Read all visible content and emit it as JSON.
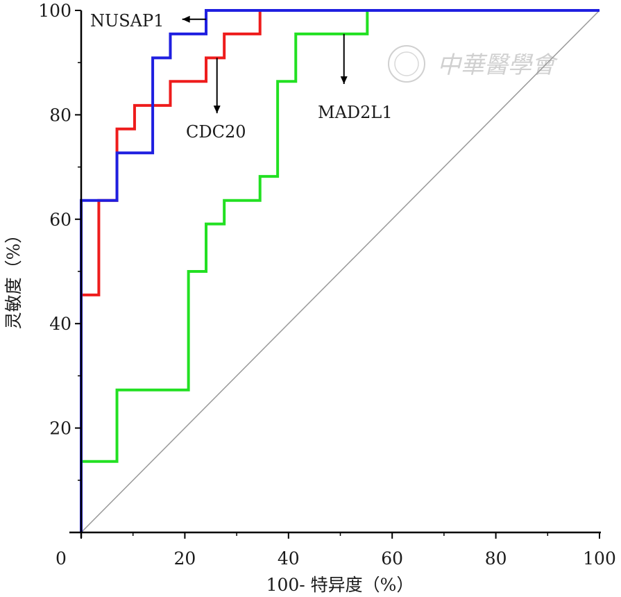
{
  "chart_data": {
    "type": "line",
    "title": "",
    "xlabel": "100- 特异度（%）",
    "ylabel": "灵敏度（%）",
    "xlim": [
      0,
      100
    ],
    "ylim": [
      0,
      100
    ],
    "x_ticks": [
      0,
      20,
      40,
      60,
      80,
      100
    ],
    "y_ticks": [
      20,
      40,
      60,
      80,
      100
    ],
    "x_tick_labels": [
      "0",
      "20",
      "40",
      "60",
      "80",
      "100"
    ],
    "y_tick_labels": [
      "20",
      "40",
      "60",
      "80",
      "100"
    ],
    "grid": false,
    "legend": "none",
    "series": [
      {
        "name": "NUSAP1",
        "color": "#1f1fe0",
        "x": [
          0,
          0,
          6.9,
          6.9,
          13.8,
          13.8,
          17.2,
          17.2,
          24.1,
          24.1,
          100
        ],
        "y": [
          0,
          63.6,
          63.6,
          72.7,
          72.7,
          90.9,
          90.9,
          95.5,
          95.5,
          100,
          100
        ]
      },
      {
        "name": "CDC20",
        "color": "#ee1c1c",
        "x": [
          0,
          0,
          3.4,
          3.4,
          6.9,
          6.9,
          10.3,
          10.3,
          17.2,
          17.2,
          24.1,
          24.1,
          27.6,
          27.6,
          34.5,
          34.5,
          100
        ],
        "y": [
          0,
          45.5,
          45.5,
          63.6,
          63.6,
          77.3,
          77.3,
          81.8,
          81.8,
          86.4,
          86.4,
          90.9,
          90.9,
          95.5,
          95.5,
          100,
          100
        ]
      },
      {
        "name": "MAD2L1",
        "color": "#22e022",
        "x": [
          0,
          0,
          6.9,
          6.9,
          20.7,
          20.7,
          24.1,
          24.1,
          27.6,
          27.6,
          34.5,
          34.5,
          37.9,
          37.9,
          41.4,
          41.4,
          55.2,
          55.2,
          100
        ],
        "y": [
          0,
          13.6,
          13.6,
          27.3,
          27.3,
          50.0,
          50.0,
          59.1,
          59.1,
          63.6,
          63.6,
          68.2,
          68.2,
          86.4,
          86.4,
          95.5,
          95.5,
          100,
          100
        ]
      }
    ],
    "reference_line": {
      "x": [
        0,
        100
      ],
      "y": [
        0,
        100
      ],
      "color": "#999999"
    },
    "annotations": [
      {
        "text": "NUSAP1",
        "arrow_from": [
          24.1,
          98.3
        ],
        "arrow_to": [
          19.5,
          98.3
        ]
      },
      {
        "text": "CDC20",
        "arrow_from": [
          26.2,
          90.9
        ],
        "arrow_to": [
          26.2,
          80.3
        ]
      },
      {
        "text": "MAD2L1",
        "arrow_from": [
          50.7,
          95.5
        ],
        "arrow_to": [
          50.7,
          85.9
        ]
      }
    ]
  },
  "watermark": {
    "text": "中華醫學會"
  }
}
